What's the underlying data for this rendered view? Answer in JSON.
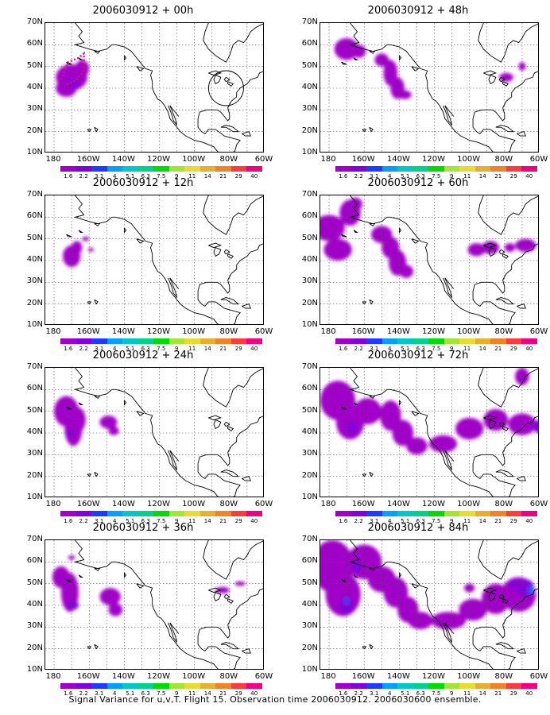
{
  "panels": [
    {
      "title": "2006030912 + 00h",
      "col": 0,
      "row": 0
    },
    {
      "title": "2006030912 + 12h",
      "col": 0,
      "row": 1
    },
    {
      "title": "2006030912 + 24h",
      "col": 0,
      "row": 2
    },
    {
      "title": "2006030912 + 36h",
      "col": 0,
      "row": 3
    },
    {
      "title": "2006030912 + 48h",
      "col": 1,
      "row": 0
    },
    {
      "title": "2006030912 + 60h",
      "col": 1,
      "row": 1
    },
    {
      "title": "2006030912 + 72h",
      "col": 1,
      "row": 2
    },
    {
      "title": "2006030912 + 84h",
      "col": 1,
      "row": 3
    }
  ],
  "lat_labels": [
    "70N",
    "60N",
    "50N",
    "40N",
    "30N",
    "20N",
    "10N"
  ],
  "lon_labels": [
    "180",
    "160W",
    "140W",
    "120W",
    "100W",
    "80W",
    "60W"
  ],
  "colorbar": {
    "labels": [
      "1.6",
      "2.2",
      "3.1",
      "4",
      "5.1",
      "6.3",
      "7.5",
      "9",
      "11",
      "14",
      "21",
      "29",
      "40"
    ],
    "colors": [
      "#a000c8",
      "#8200dc",
      "#1e3cff",
      "#00a0ff",
      "#00c8c8",
      "#00d28c",
      "#00dc00",
      "#a0e632",
      "#e6dc32",
      "#e6af2d",
      "#f08228",
      "#fa3c3c",
      "#f00082"
    ]
  },
  "caption": "Signal Variance for u,v,T. Flight 15. Observation time 2006030912. 2006030600 ensemble."
}
